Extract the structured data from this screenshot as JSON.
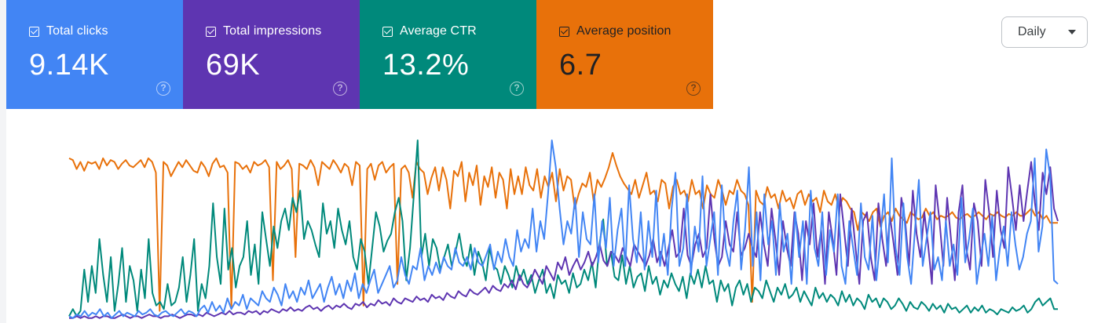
{
  "metrics": [
    {
      "label": "Total clicks",
      "value": "9.14K",
      "bg": "#4285f4",
      "fg": "#ffffff",
      "checked": true
    },
    {
      "label": "Total impressions",
      "value": "69K",
      "bg": "#5e35b1",
      "fg": "#ffffff",
      "checked": true
    },
    {
      "label": "Average CTR",
      "value": "13.2%",
      "bg": "#00897b",
      "fg": "#ffffff",
      "checked": true
    },
    {
      "label": "Average position",
      "value": "6.7",
      "bg": "#e8710a",
      "fg": "#202124",
      "checked": true
    }
  ],
  "help_icon": "help-circle-icon",
  "granularity": {
    "selected": "Daily"
  },
  "chart_data": {
    "type": "line",
    "x_points": 260,
    "series": [
      {
        "name": "Average position",
        "color": "#e8710a",
        "values": [
          0.9,
          0.89,
          0.84,
          0.88,
          0.83,
          0.88,
          0.87,
          0.88,
          0.84,
          0.9,
          0.86,
          0.89,
          0.88,
          0.84,
          0.87,
          0.89,
          0.86,
          0.85,
          0.87,
          0.89,
          0.85,
          0.9,
          0.88,
          0.82,
          0.05,
          0.88,
          0.86,
          0.8,
          0.84,
          0.88,
          0.85,
          0.89,
          0.86,
          0.83,
          0.82,
          0.88,
          0.85,
          0.8,
          0.87,
          0.9,
          0.85,
          0.86,
          0.82,
          0.07,
          0.88,
          0.87,
          0.84,
          0.86,
          0.82,
          0.88,
          0.86,
          0.87,
          0.89,
          0.85,
          0.22,
          0.88,
          0.84,
          0.86,
          0.89,
          0.84,
          0.35,
          0.87,
          0.86,
          0.84,
          0.89,
          0.85,
          0.75,
          0.88,
          0.86,
          0.84,
          0.89,
          0.86,
          0.82,
          0.87,
          0.85,
          0.75,
          0.88,
          0.86,
          0.08,
          0.84,
          0.87,
          0.78,
          0.86,
          0.88,
          0.82,
          0.85,
          0.87,
          0.2,
          0.84,
          0.86,
          0.82,
          0.68,
          0.88,
          0.84,
          0.82,
          0.7,
          0.79,
          0.85,
          0.72,
          0.85,
          0.78,
          0.62,
          0.83,
          0.8,
          0.88,
          0.66,
          0.82,
          0.75,
          0.86,
          0.64,
          0.8,
          0.74,
          0.85,
          0.68,
          0.82,
          0.78,
          0.62,
          0.84,
          0.7,
          0.8,
          0.7,
          0.85,
          0.75,
          0.72,
          0.84,
          0.68,
          0.8,
          0.74,
          0.82,
          0.66,
          0.84,
          0.72,
          0.8,
          0.78,
          0.62,
          0.7,
          0.76,
          0.74,
          0.82,
          0.66,
          0.78,
          0.74,
          0.79,
          0.85,
          0.93,
          0.86,
          0.8,
          0.76,
          0.73,
          0.7,
          0.78,
          0.68,
          0.75,
          0.82,
          0.7,
          0.72,
          0.66,
          0.78,
          0.76,
          0.62,
          0.74,
          0.78,
          0.7,
          0.72,
          0.66,
          0.78,
          0.7,
          0.72,
          0.62,
          0.75,
          0.7,
          0.68,
          0.78,
          0.72,
          0.64,
          0.72,
          0.7,
          0.78,
          0.72,
          0.7,
          0.64,
          0.1,
          0.72,
          0.66,
          0.64,
          0.74,
          0.68,
          0.7,
          0.62,
          0.72,
          0.66,
          0.68,
          0.62,
          0.7,
          0.72,
          0.64,
          0.7,
          0.66,
          0.68,
          0.6,
          0.72,
          0.66,
          0.64,
          0.7,
          0.62,
          0.68,
          0.66,
          0.62,
          0.6,
          0.5,
          0.6,
          0.58,
          0.55,
          0.6,
          0.62,
          0.52,
          0.58,
          0.6,
          0.55,
          0.62,
          0.58,
          0.56,
          0.54,
          0.6,
          0.58,
          0.56,
          0.57,
          0.62,
          0.58,
          0.6,
          0.56,
          0.58,
          0.57,
          0.58,
          0.6,
          0.57,
          0.56,
          0.58,
          0.59,
          0.57,
          0.58,
          0.6,
          0.58,
          0.56,
          0.59,
          0.58,
          0.6,
          0.58,
          0.57,
          0.59,
          0.58,
          0.6,
          0.58,
          0.58,
          0.6,
          0.62,
          0.58,
          0.6,
          0.56,
          0.58,
          0.54,
          0.54,
          0.54
        ]
      },
      {
        "name": "Average CTR",
        "color": "#00897b",
        "values": [
          0.02,
          0.06,
          0.02,
          0.05,
          0.28,
          0.1,
          0.3,
          0.15,
          0.45,
          0.25,
          0.1,
          0.35,
          0.05,
          0.2,
          0.4,
          0.1,
          0.3,
          0.22,
          0.05,
          0.28,
          0.12,
          0.45,
          0.15,
          0.08,
          0.1,
          0.06,
          0.2,
          0.08,
          0.1,
          0.18,
          0.35,
          0.1,
          0.25,
          0.45,
          0.05,
          0.2,
          0.12,
          0.3,
          0.65,
          0.35,
          0.2,
          0.62,
          0.28,
          0.4,
          0.18,
          0.3,
          0.35,
          0.55,
          0.25,
          0.42,
          0.2,
          0.6,
          0.45,
          0.3,
          0.52,
          0.4,
          0.55,
          0.62,
          0.5,
          0.68,
          0.6,
          0.72,
          0.45,
          0.55,
          0.5,
          0.42,
          0.35,
          0.65,
          0.48,
          0.55,
          0.4,
          0.62,
          0.5,
          0.42,
          0.55,
          0.35,
          0.28,
          0.45,
          0.38,
          0.2,
          0.4,
          0.6,
          0.52,
          0.38,
          0.44,
          0.48,
          0.6,
          0.68,
          0.55,
          0.22,
          0.4,
          0.7,
          1.0,
          0.35,
          0.48,
          0.3,
          0.45,
          0.4,
          0.28,
          0.35,
          0.42,
          0.3,
          0.38,
          0.48,
          0.35,
          0.3,
          0.42,
          0.25,
          0.38,
          0.32,
          0.22,
          0.4,
          0.3,
          0.28,
          0.2,
          0.3,
          0.25,
          0.18,
          0.3,
          0.22,
          0.28,
          0.2,
          0.25,
          0.15,
          0.22,
          0.28,
          0.15,
          0.2,
          0.12,
          0.25,
          0.2,
          0.22,
          0.15,
          0.26,
          0.18,
          0.2,
          0.28,
          0.22,
          0.32,
          0.18,
          0.42,
          0.56,
          0.3,
          0.38,
          0.24,
          0.22,
          0.36,
          0.2,
          0.3,
          0.18,
          0.24,
          0.26,
          0.16,
          0.3,
          0.2,
          0.24,
          0.14,
          0.22,
          0.18,
          0.26,
          0.2,
          0.16,
          0.24,
          0.12,
          0.26,
          0.2,
          0.28,
          0.18,
          0.3,
          0.2,
          0.22,
          0.1,
          0.22,
          0.16,
          0.2,
          0.08,
          0.18,
          0.22,
          0.14,
          0.2,
          0.1,
          0.18,
          0.16,
          0.12,
          0.22,
          0.16,
          0.1,
          0.18,
          0.14,
          0.2,
          0.12,
          0.14,
          0.18,
          0.1,
          0.16,
          0.12,
          0.08,
          0.18,
          0.12,
          0.15,
          0.1,
          0.14,
          0.12,
          0.08,
          0.16,
          0.1,
          0.14,
          0.08,
          0.12,
          0.1,
          0.06,
          0.14,
          0.1,
          0.12,
          0.07,
          0.12,
          0.1,
          0.06,
          0.08,
          0.12,
          0.09,
          0.05,
          0.1,
          0.07,
          0.06,
          0.1,
          0.08,
          0.05,
          0.09,
          0.06,
          0.08,
          0.04,
          0.09,
          0.06,
          0.07,
          0.04,
          0.06,
          0.08,
          0.04,
          0.07,
          0.05,
          0.08,
          0.04,
          0.06,
          0.05,
          0.03,
          0.06,
          0.05,
          0.04,
          0.07,
          0.05,
          0.06,
          0.08,
          0.04,
          0.06,
          0.1,
          0.12,
          0.08,
          0.1,
          0.12,
          0.06,
          0.06
        ]
      },
      {
        "name": "Total impressions",
        "color": "#5e35b1",
        "values": [
          0.01,
          0.01,
          0.02,
          0.01,
          0.02,
          0.01,
          0.01,
          0.02,
          0.01,
          0.02,
          0.02,
          0.01,
          0.01,
          0.02,
          0.03,
          0.02,
          0.01,
          0.02,
          0.02,
          0.01,
          0.02,
          0.03,
          0.02,
          0.02,
          0.01,
          0.02,
          0.02,
          0.03,
          0.02,
          0.01,
          0.02,
          0.03,
          0.03,
          0.02,
          0.03,
          0.02,
          0.04,
          0.03,
          0.02,
          0.03,
          0.04,
          0.03,
          0.05,
          0.03,
          0.04,
          0.04,
          0.03,
          0.05,
          0.04,
          0.05,
          0.03,
          0.05,
          0.04,
          0.06,
          0.05,
          0.04,
          0.06,
          0.05,
          0.07,
          0.05,
          0.06,
          0.05,
          0.07,
          0.08,
          0.06,
          0.07,
          0.05,
          0.07,
          0.08,
          0.06,
          0.08,
          0.07,
          0.09,
          0.07,
          0.06,
          0.09,
          0.08,
          0.1,
          0.07,
          0.09,
          0.08,
          0.11,
          0.09,
          0.1,
          0.08,
          0.12,
          0.1,
          0.09,
          0.12,
          0.11,
          0.1,
          0.13,
          0.11,
          0.12,
          0.1,
          0.14,
          0.12,
          0.13,
          0.11,
          0.15,
          0.13,
          0.12,
          0.16,
          0.14,
          0.13,
          0.17,
          0.15,
          0.14,
          0.16,
          0.18,
          0.15,
          0.19,
          0.17,
          0.16,
          0.2,
          0.18,
          0.22,
          0.17,
          0.25,
          0.2,
          0.18,
          0.22,
          0.28,
          0.24,
          0.2,
          0.3,
          0.26,
          0.22,
          0.32,
          0.28,
          0.35,
          0.25,
          0.3,
          0.34,
          0.28,
          0.32,
          0.38,
          0.3,
          0.35,
          0.42,
          0.33,
          0.3,
          0.38,
          0.36,
          0.32,
          0.4,
          0.35,
          0.3,
          0.42,
          0.38,
          0.34,
          0.3,
          0.36,
          0.45,
          0.32,
          0.38,
          0.3,
          0.4,
          0.5,
          0.35,
          0.38,
          0.62,
          0.36,
          0.3,
          0.42,
          0.48,
          0.35,
          0.4,
          0.7,
          0.45,
          0.3,
          0.35,
          0.55,
          0.42,
          0.38,
          0.6,
          0.36,
          0.4,
          0.48,
          0.4,
          0.35,
          0.6,
          0.42,
          0.3,
          0.62,
          0.45,
          0.25,
          0.55,
          0.4,
          0.3,
          0.6,
          0.48,
          0.22,
          0.55,
          0.42,
          0.65,
          0.35,
          0.5,
          0.2,
          0.6,
          0.45,
          0.25,
          0.7,
          0.5,
          0.3,
          0.62,
          0.4,
          0.2,
          0.55,
          0.6,
          0.35,
          0.22,
          0.65,
          0.45,
          0.3,
          0.58,
          0.42,
          0.25,
          0.68,
          0.55,
          0.3,
          0.72,
          0.48,
          0.35,
          0.6,
          0.42,
          0.2,
          0.75,
          0.55,
          0.3,
          0.68,
          0.45,
          0.22,
          0.6,
          0.75,
          0.4,
          0.28,
          0.65,
          0.55,
          0.3,
          0.78,
          0.6,
          0.35,
          0.72,
          0.5,
          0.4,
          0.85,
          0.68,
          0.5,
          0.75,
          0.55,
          0.72,
          0.88,
          0.65,
          0.5,
          0.82,
          0.7,
          0.85,
          0.62,
          0.55
        ]
      },
      {
        "name": "Total clicks",
        "color": "#4285f4",
        "values": [
          0.02,
          0.01,
          0.03,
          0.02,
          0.05,
          0.02,
          0.04,
          0.03,
          0.06,
          0.02,
          0.04,
          0.01,
          0.03,
          0.05,
          0.02,
          0.04,
          0.03,
          0.02,
          0.05,
          0.03,
          0.04,
          0.06,
          0.03,
          0.02,
          0.04,
          0.05,
          0.03,
          0.02,
          0.04,
          0.06,
          0.03,
          0.05,
          0.04,
          0.02,
          0.06,
          0.08,
          0.04,
          0.1,
          0.05,
          0.08,
          0.04,
          0.12,
          0.06,
          0.1,
          0.08,
          0.14,
          0.06,
          0.12,
          0.1,
          0.08,
          0.16,
          0.12,
          0.1,
          0.18,
          0.14,
          0.08,
          0.2,
          0.12,
          0.16,
          0.1,
          0.18,
          0.14,
          0.22,
          0.12,
          0.16,
          0.2,
          0.1,
          0.18,
          0.24,
          0.14,
          0.2,
          0.12,
          0.22,
          0.16,
          0.26,
          0.12,
          0.2,
          0.15,
          0.22,
          0.28,
          0.15,
          0.2,
          0.25,
          0.3,
          0.18,
          0.22,
          0.35,
          0.25,
          0.2,
          0.3,
          0.28,
          0.4,
          0.22,
          0.3,
          0.25,
          0.32,
          0.26,
          0.35,
          0.3,
          0.28,
          0.4,
          0.32,
          0.3,
          0.35,
          0.28,
          0.4,
          0.32,
          0.3,
          0.36,
          0.42,
          0.28,
          0.38,
          0.32,
          0.45,
          0.35,
          0.3,
          0.5,
          0.38,
          0.45,
          0.4,
          0.62,
          0.38,
          0.55,
          0.45,
          0.7,
          1.0,
          0.85,
          0.62,
          0.42,
          0.55,
          0.48,
          0.68,
          0.35,
          0.6,
          0.45,
          0.42,
          0.7,
          0.32,
          0.55,
          0.4,
          0.68,
          0.3,
          0.5,
          0.62,
          0.3,
          0.75,
          0.45,
          0.32,
          0.6,
          0.28,
          0.55,
          0.35,
          0.72,
          0.3,
          0.48,
          0.25,
          0.62,
          0.82,
          0.3,
          0.4,
          0.7,
          0.25,
          0.52,
          0.38,
          0.8,
          0.3,
          0.45,
          0.6,
          0.25,
          0.75,
          0.4,
          0.3,
          0.55,
          0.72,
          0.28,
          0.5,
          0.85,
          0.3,
          0.6,
          0.22,
          0.7,
          0.42,
          0.55,
          0.25,
          0.65,
          0.38,
          0.48,
          0.2,
          0.6,
          0.35,
          0.55,
          0.2,
          0.72,
          0.4,
          0.3,
          0.6,
          0.25,
          0.5,
          0.38,
          0.7,
          0.3,
          0.2,
          0.55,
          0.4,
          0.25,
          0.65,
          0.35,
          0.28,
          0.58,
          0.22,
          0.45,
          0.7,
          0.32,
          0.9,
          0.4,
          0.25,
          0.65,
          0.35,
          0.2,
          0.5,
          0.78,
          0.3,
          0.45,
          0.6,
          0.28,
          0.35,
          0.22,
          0.55,
          0.3,
          0.42,
          0.25,
          0.68,
          0.32,
          0.45,
          0.62,
          0.2,
          0.35,
          0.48,
          0.3,
          0.58,
          0.22,
          0.4,
          0.52,
          0.3,
          0.6,
          0.42,
          0.28,
          0.35,
          0.48,
          0.55,
          0.9,
          0.38,
          0.52,
          0.95,
          0.8,
          0.22,
          0.2
        ]
      }
    ],
    "ylim": [
      0,
      1
    ],
    "grid": false,
    "legend": "none"
  }
}
